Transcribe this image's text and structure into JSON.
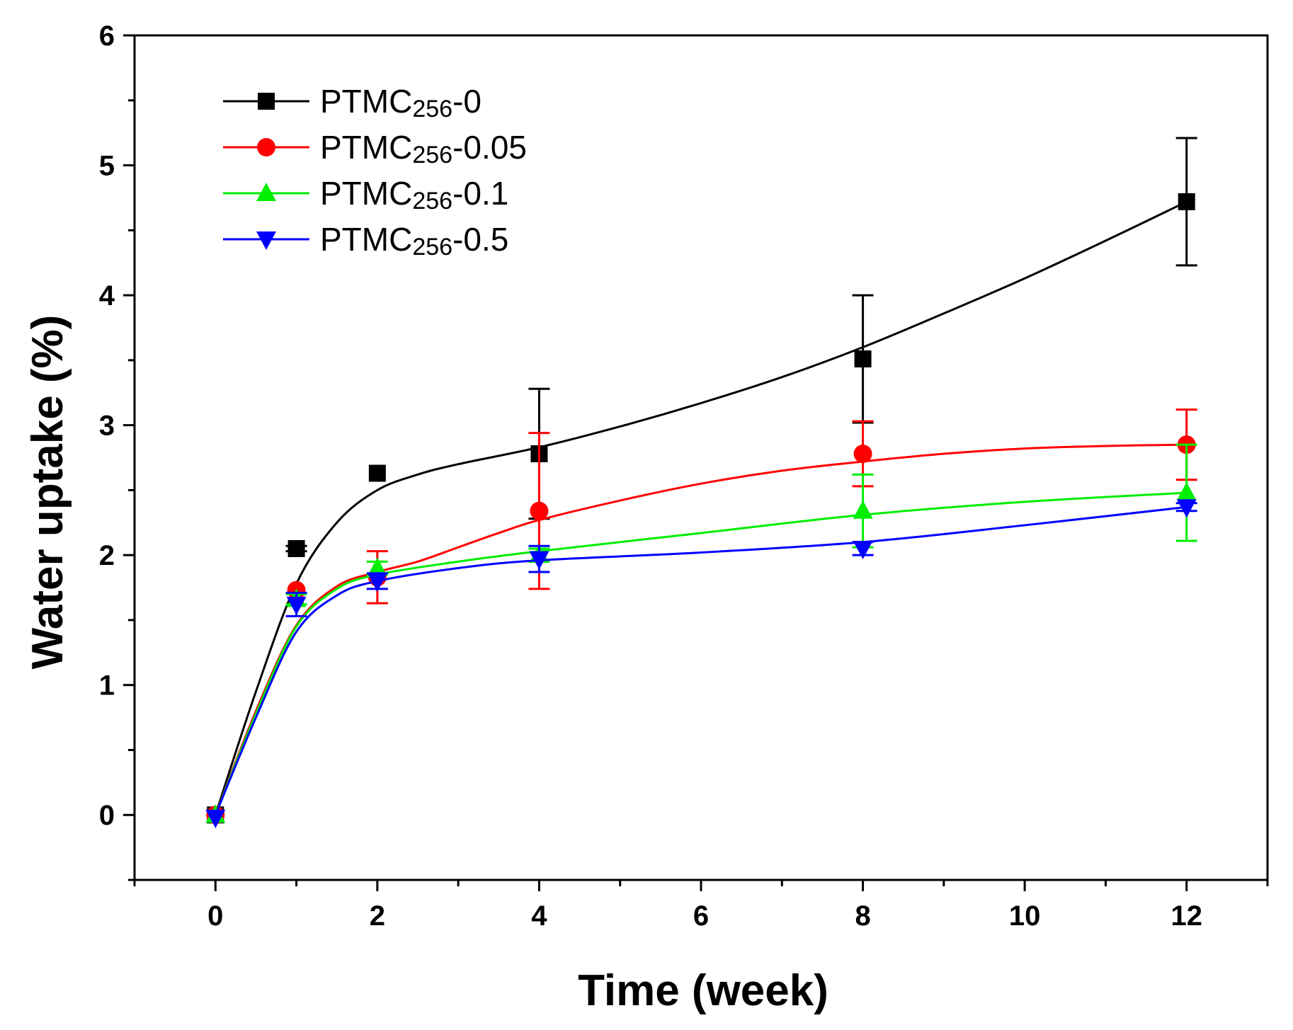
{
  "chart_data": {
    "type": "scatter",
    "title": "",
    "xlabel": "Time (week)",
    "ylabel": "Water uptake (%)",
    "xlim": [
      -1,
      13
    ],
    "ylim": [
      -0.5,
      6
    ],
    "xticks": [
      0,
      2,
      4,
      6,
      8,
      10,
      12
    ],
    "yticks": [
      0,
      1,
      2,
      3,
      4,
      5,
      6
    ],
    "x": [
      0,
      1,
      2,
      4,
      8,
      12
    ],
    "legend_position": "top-left",
    "series": [
      {
        "name": "PTMC256-0",
        "name_prefix": "PTMC",
        "name_sub": "256",
        "name_suffix": "-0",
        "color": "#000000",
        "marker": "square",
        "values": [
          0,
          2.05,
          2.63,
          2.78,
          3.51,
          4.72
        ],
        "errors": [
          0,
          0.02,
          0,
          0.5,
          0.49,
          0.49
        ],
        "fit": [
          [
            0,
            0
          ],
          [
            0.5,
            0.95
          ],
          [
            1,
            1.78
          ],
          [
            1.5,
            2.25
          ],
          [
            2,
            2.5
          ],
          [
            2.5,
            2.62
          ],
          [
            3,
            2.7
          ],
          [
            4,
            2.83
          ],
          [
            5,
            2.99
          ],
          [
            6,
            3.17
          ],
          [
            7,
            3.37
          ],
          [
            8,
            3.6
          ],
          [
            9,
            3.86
          ],
          [
            10,
            4.13
          ],
          [
            11,
            4.42
          ],
          [
            12,
            4.72
          ]
        ]
      },
      {
        "name": "PTMC256-0.05",
        "name_prefix": "PTMC",
        "name_sub": "256",
        "name_suffix": "-0.05",
        "color": "#ff0000",
        "marker": "circle",
        "values": [
          0,
          1.73,
          1.83,
          2.34,
          2.78,
          2.85
        ],
        "errors": [
          0,
          0,
          0.2,
          0.6,
          0.25,
          0.27
        ],
        "fit": [
          [
            0,
            0
          ],
          [
            0.5,
            0.8
          ],
          [
            1,
            1.46
          ],
          [
            1.5,
            1.76
          ],
          [
            2,
            1.87
          ],
          [
            2.5,
            1.95
          ],
          [
            3,
            2.06
          ],
          [
            3.5,
            2.17
          ],
          [
            4,
            2.27
          ],
          [
            5,
            2.42
          ],
          [
            6,
            2.55
          ],
          [
            7,
            2.65
          ],
          [
            8,
            2.72
          ],
          [
            9,
            2.78
          ],
          [
            10,
            2.82
          ],
          [
            11,
            2.84
          ],
          [
            12,
            2.85
          ]
        ]
      },
      {
        "name": "PTMC256-0.1",
        "name_prefix": "PTMC",
        "name_sub": "256",
        "name_suffix": "-0.1",
        "color": "#00ee00",
        "marker": "triangle-up",
        "values": [
          0,
          1.66,
          1.9,
          2.0,
          2.34,
          2.48
        ],
        "errors": [
          0,
          0.04,
          0.05,
          0.05,
          0.28,
          0.37
        ],
        "fit": [
          [
            0,
            0
          ],
          [
            0.5,
            0.78
          ],
          [
            1,
            1.45
          ],
          [
            1.5,
            1.74
          ],
          [
            2,
            1.85
          ],
          [
            3,
            1.95
          ],
          [
            4,
            2.03
          ],
          [
            6,
            2.17
          ],
          [
            8,
            2.31
          ],
          [
            10,
            2.41
          ],
          [
            12,
            2.48
          ]
        ]
      },
      {
        "name": "PTMC256-0.5",
        "name_prefix": "PTMC",
        "name_sub": "256",
        "name_suffix": "-0.5",
        "color": "#0000ff",
        "marker": "triangle-down",
        "values": [
          -0.02,
          1.62,
          1.8,
          1.97,
          2.05,
          2.37
        ],
        "errors": [
          0,
          0.09,
          0.06,
          0.1,
          0.05,
          0.03
        ],
        "fit": [
          [
            0,
            0
          ],
          [
            0.5,
            0.75
          ],
          [
            1,
            1.41
          ],
          [
            1.5,
            1.69
          ],
          [
            2,
            1.8
          ],
          [
            3,
            1.9
          ],
          [
            4,
            1.96
          ],
          [
            6,
            2.02
          ],
          [
            8,
            2.1
          ],
          [
            10,
            2.23
          ],
          [
            12,
            2.37
          ]
        ]
      }
    ]
  }
}
